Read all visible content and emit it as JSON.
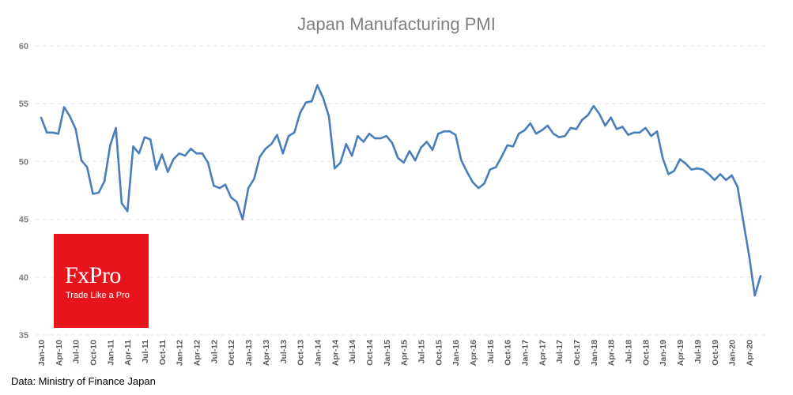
{
  "chart_data": {
    "type": "line",
    "title": "Japan Manufacturing PMI",
    "xlabel": "",
    "ylabel": "",
    "ylim": [
      35,
      60
    ],
    "yticks": [
      35,
      40,
      45,
      50,
      55,
      60
    ],
    "grid": true,
    "x_start": "Jan-10",
    "x_end": "Jun-20",
    "x_frequency": "monthly",
    "xtick_labels": [
      "Jan-10",
      "Apr-10",
      "Jul-10",
      "Oct-10",
      "Jan-11",
      "Apr-11",
      "Jul-11",
      "Oct-11",
      "Jan-12",
      "Apr-12",
      "Jul-12",
      "Oct-12",
      "Jan-13",
      "Apr-13",
      "Jul-13",
      "Oct-13",
      "Jan-14",
      "Apr-14",
      "Jul-14",
      "Oct-14",
      "Jan-15",
      "Apr-15",
      "Jul-15",
      "Oct-15",
      "Jan-16",
      "Apr-16",
      "Jul-16",
      "Oct-16",
      "Jan-17",
      "Apr-17",
      "Jul-17",
      "Oct-17",
      "Jan-18",
      "Apr-18",
      "Jul-18",
      "Oct-18",
      "Jan-19",
      "Apr-19",
      "Jul-19",
      "Oct-19",
      "Jan-20",
      "Apr-20"
    ],
    "line_color": "#4a7ebb",
    "series": [
      {
        "values": [
          53.8,
          52.5,
          52.5,
          52.4,
          54.7,
          53.9,
          52.8,
          50.1,
          49.5,
          47.2,
          47.3,
          48.3,
          51.4,
          52.9,
          46.4,
          45.7,
          51.3,
          50.7,
          52.1,
          51.9,
          49.3,
          50.6,
          49.1,
          50.2,
          50.7,
          50.5,
          51.1,
          50.7,
          50.7,
          49.9,
          47.9,
          47.7,
          48.0,
          46.9,
          46.5,
          45.0,
          47.7,
          48.5,
          50.4,
          51.1,
          51.5,
          52.3,
          50.7,
          52.2,
          52.5,
          54.2,
          55.1,
          55.2,
          56.6,
          55.5,
          53.9,
          49.4,
          49.9,
          51.5,
          50.5,
          52.2,
          51.7,
          52.4,
          52.0,
          52.0,
          52.2,
          51.6,
          50.3,
          49.9,
          50.9,
          50.1,
          51.2,
          51.7,
          51.0,
          52.4,
          52.6,
          52.6,
          52.3,
          50.1,
          49.1,
          48.2,
          47.7,
          48.1,
          49.3,
          49.5,
          50.4,
          51.4,
          51.3,
          52.4,
          52.7,
          53.3,
          52.4,
          52.7,
          53.1,
          52.4,
          52.1,
          52.2,
          52.9,
          52.8,
          53.6,
          54.0,
          54.8,
          54.1,
          53.1,
          53.8,
          52.8,
          53.0,
          52.3,
          52.5,
          52.5,
          52.9,
          52.2,
          52.6,
          50.3,
          48.9,
          49.2,
          50.2,
          49.8,
          49.3,
          49.4,
          49.3,
          48.9,
          48.4,
          48.9,
          48.4,
          48.8,
          47.8,
          44.8,
          41.9,
          38.4,
          40.1
        ]
      }
    ]
  },
  "source": "Data: Ministry of Finance Japan",
  "logo": {
    "brand": "FxPro",
    "tagline": "Trade Like a Pro",
    "color": "#e8141c"
  }
}
